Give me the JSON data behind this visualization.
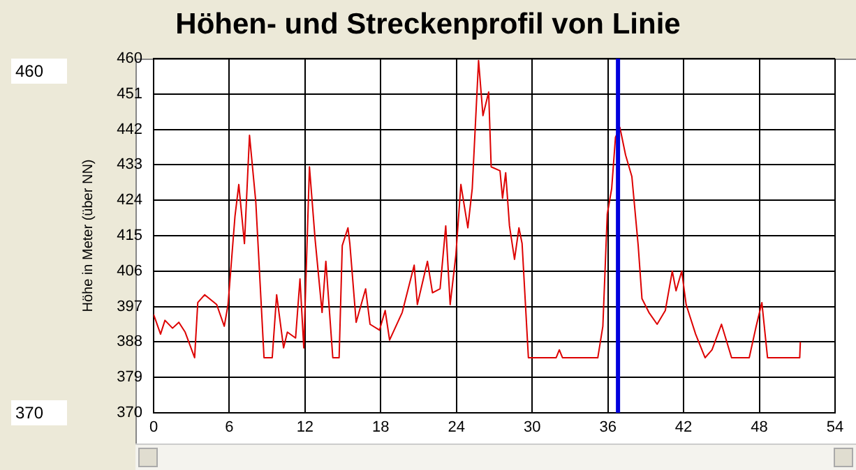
{
  "chart_data": {
    "type": "line",
    "title": "Höhen- und Streckenprofil von Linie",
    "ylabel": "Höhe in Meter (über NN)",
    "annotations": [
      "460",
      "370"
    ],
    "series": [
      {
        "color": "#dd0000",
        "x": [
          0,
          0.55,
          0.9,
          1.5,
          2,
          2.5,
          3.25,
          3.5,
          4.05,
          5,
          5.6,
          5.9,
          6.45,
          6.75,
          7.2,
          7.6,
          8.1,
          8.75,
          9.4,
          9.75,
          10.3,
          10.6,
          11.25,
          11.6,
          11.9,
          12.35,
          12.8,
          13.35,
          13.65,
          14.2,
          14.7,
          14.95,
          15.4,
          15.55,
          16.05,
          16.8,
          17.15,
          17.9,
          18.35,
          18.7,
          19.7,
          20.65,
          20.9,
          21.7,
          22.1,
          22.7,
          23.15,
          23.5,
          23.95,
          24.35,
          24.9,
          25.25,
          25.75,
          26.1,
          26.55,
          26.75,
          27.45,
          27.65,
          27.9,
          28.2,
          28.6,
          28.95,
          29.2,
          29.7,
          31.9,
          32.15,
          32.4,
          35.2,
          35.6,
          35.95,
          36.3,
          36.6,
          36.95,
          37.4,
          37.9,
          38.4,
          38.7,
          39.25,
          39.9,
          40.55,
          41.1,
          41.4,
          41.85,
          42.2,
          42.95,
          43.7,
          44.25,
          45,
          45.8,
          47.2,
          47.75,
          48.2,
          48.65,
          51.2,
          51.25
        ],
        "values": [
          395,
          390,
          393.5,
          391.5,
          393,
          390.5,
          384,
          398,
          400,
          397.5,
          392,
          397.5,
          420,
          428,
          413,
          440.5,
          423.5,
          384,
          384,
          400,
          386.5,
          390.5,
          389,
          404,
          386.5,
          432.5,
          414,
          395.5,
          408.5,
          384,
          384,
          412.5,
          417,
          413,
          393,
          401.5,
          392.5,
          391,
          396,
          388.5,
          395.5,
          407.5,
          397.5,
          408.5,
          400.5,
          401.5,
          417.5,
          397.5,
          410,
          428,
          417,
          427,
          459.5,
          445.5,
          451.5,
          432.5,
          431.5,
          424.5,
          431,
          417.5,
          409,
          417,
          413,
          384,
          384,
          386,
          384,
          384,
          392,
          420.5,
          427,
          440,
          442.5,
          435.5,
          430,
          412.5,
          399,
          395.5,
          392.5,
          396,
          406,
          401,
          406,
          397.5,
          390,
          384,
          386,
          392.5,
          384,
          384,
          392,
          398,
          384,
          384,
          388
        ]
      }
    ],
    "xlim": [
      0,
      54
    ],
    "xticks": [
      0,
      6,
      12,
      18,
      24,
      30,
      36,
      42,
      48,
      54
    ],
    "ylim": [
      370,
      460
    ],
    "yticks": [
      370,
      379,
      388,
      397,
      406,
      415,
      424,
      433,
      442,
      451,
      460
    ],
    "ref_lines": [
      {
        "axis": "x",
        "value": 36.8,
        "color": "#0000dd"
      }
    ],
    "grid": true,
    "legend": false,
    "marker": "none",
    "line_style": "solid"
  }
}
